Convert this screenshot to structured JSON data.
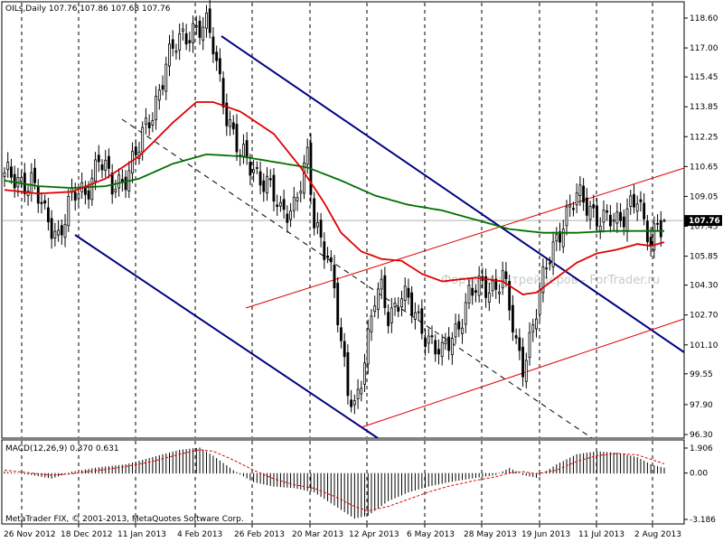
{
  "chart_header": "OILs,Daily  107.76 107.86 107.68 107.76",
  "indicator_header": "MACD(12,26,9) 0.370 0.631",
  "copyright": "MetaTrader FIX, © 2001-2013, MetaQuotes Software Corp.",
  "watermark": "Форум для трейдеров - ForTrader.ru",
  "current_price_label": "107.76",
  "colors": {
    "candle": "#000000",
    "ma_fast": "#e00000",
    "ma_slow": "#007000",
    "channel_blue": "#000080",
    "channel_red": "#e00000",
    "macd_signal": "#e00000",
    "grid_vertical": "#000000",
    "bid_line": "#b0b0b0"
  },
  "chart_data": {
    "type": "candlestick",
    "symbol": "OILs",
    "timeframe": "Daily",
    "ohlc": {
      "open": 107.76,
      "high": 107.86,
      "low": 107.68,
      "close": 107.76
    },
    "ylim": [
      96.3,
      119.0
    ],
    "price_ticks": [
      "118.60",
      "117.00",
      "115.45",
      "113.85",
      "112.25",
      "110.65",
      "109.05",
      "107.45",
      "105.85",
      "104.30",
      "102.70",
      "101.10",
      "99.55",
      "97.90",
      "96.30"
    ],
    "date_ticks": [
      "26 Nov 2012",
      "18 Dec 2012",
      "11 Jan 2013",
      "4 Feb 2013",
      "26 Feb 2013",
      "20 Mar 2013",
      "12 Apr 2013",
      "6 May 2013",
      "28 May 2013",
      "19 Jun 2013",
      "11 Jul 2013",
      "2 Aug 2013"
    ],
    "close_series": {
      "name": "close",
      "keys": [
        [
          0,
          110.0
        ],
        [
          8,
          109.9
        ],
        [
          12,
          107.9
        ],
        [
          16,
          107.1
        ],
        [
          20,
          108.9
        ],
        [
          24,
          109.3
        ],
        [
          28,
          111.2
        ],
        [
          32,
          109.4
        ],
        [
          36,
          110.3
        ],
        [
          40,
          111.6
        ],
        [
          44,
          113.6
        ],
        [
          48,
          116.2
        ],
        [
          52,
          117.3
        ],
        [
          56,
          118.2
        ],
        [
          60,
          118.0
        ],
        [
          62,
          117.0
        ],
        [
          66,
          113.6
        ],
        [
          70,
          111.1
        ],
        [
          74,
          110.6
        ],
        [
          78,
          109.8
        ],
        [
          82,
          108.0
        ],
        [
          86,
          108.8
        ],
        [
          90,
          110.9
        ],
        [
          92,
          107.5
        ],
        [
          96,
          106.2
        ],
        [
          98,
          104.2
        ],
        [
          100,
          100.8
        ],
        [
          102,
          98.5
        ],
        [
          104,
          97.9
        ],
        [
          106,
          99.6
        ],
        [
          108,
          101.4
        ],
        [
          110,
          103.4
        ],
        [
          112,
          103.9
        ],
        [
          114,
          102.8
        ],
        [
          118,
          103.8
        ],
        [
          122,
          102.6
        ],
        [
          126,
          101.6
        ],
        [
          130,
          100.4
        ],
        [
          134,
          101.9
        ],
        [
          138,
          103.8
        ],
        [
          142,
          104.1
        ],
        [
          146,
          104.4
        ],
        [
          148,
          104.9
        ],
        [
          152,
          100.9
        ],
        [
          154,
          100.1
        ],
        [
          158,
          103.0
        ],
        [
          162,
          105.8
        ],
        [
          166,
          107.9
        ],
        [
          170,
          108.9
        ],
        [
          174,
          108.5
        ],
        [
          178,
          107.8
        ],
        [
          182,
          107.5
        ],
        [
          186,
          108.9
        ],
        [
          188,
          109.0
        ],
        [
          190,
          107.2
        ],
        [
          192,
          106.4
        ],
        [
          194,
          107.8
        ],
        [
          196,
          107.76
        ]
      ],
      "ma_fast_keys": [
        [
          0,
          109.4
        ],
        [
          10,
          109.2
        ],
        [
          20,
          109.3
        ],
        [
          30,
          110.0
        ],
        [
          40,
          111.2
        ],
        [
          50,
          113.0
        ],
        [
          57,
          114.1
        ],
        [
          62,
          114.1
        ],
        [
          70,
          113.6
        ],
        [
          80,
          112.4
        ],
        [
          88,
          110.6
        ],
        [
          95,
          108.7
        ],
        [
          100,
          107.1
        ],
        [
          106,
          106.1
        ],
        [
          112,
          105.7
        ],
        [
          118,
          105.6
        ],
        [
          124,
          104.9
        ],
        [
          130,
          104.5
        ],
        [
          140,
          104.7
        ],
        [
          148,
          104.5
        ],
        [
          154,
          103.8
        ],
        [
          158,
          103.9
        ],
        [
          164,
          104.7
        ],
        [
          170,
          105.5
        ],
        [
          176,
          106.0
        ],
        [
          182,
          106.2
        ],
        [
          188,
          106.5
        ],
        [
          192,
          106.4
        ],
        [
          196,
          106.6
        ]
      ],
      "ma_slow_keys": [
        [
          0,
          109.9
        ],
        [
          10,
          109.6
        ],
        [
          20,
          109.5
        ],
        [
          30,
          109.6
        ],
        [
          40,
          110.0
        ],
        [
          50,
          110.8
        ],
        [
          60,
          111.3
        ],
        [
          70,
          111.2
        ],
        [
          80,
          110.9
        ],
        [
          90,
          110.6
        ],
        [
          100,
          109.9
        ],
        [
          110,
          109.1
        ],
        [
          120,
          108.6
        ],
        [
          130,
          108.3
        ],
        [
          140,
          107.8
        ],
        [
          150,
          107.3
        ],
        [
          160,
          107.1
        ],
        [
          170,
          107.1
        ],
        [
          180,
          107.2
        ],
        [
          190,
          107.2
        ],
        [
          196,
          107.2
        ]
      ]
    },
    "macd": {
      "name": "MACD(12,26,9)",
      "values": {
        "macd": 0.37,
        "signal": 0.631
      },
      "ticks": [
        "1.906",
        "0.00",
        "-3.186"
      ],
      "ylim": [
        -3.186,
        1.906
      ],
      "hist_keys": [
        [
          0,
          0.1
        ],
        [
          8,
          -0.1
        ],
        [
          14,
          -0.35
        ],
        [
          20,
          0.1
        ],
        [
          28,
          0.4
        ],
        [
          36,
          0.6
        ],
        [
          44,
          1.1
        ],
        [
          52,
          1.6
        ],
        [
          58,
          1.75
        ],
        [
          62,
          1.2
        ],
        [
          68,
          0.2
        ],
        [
          74,
          -0.6
        ],
        [
          80,
          -0.9
        ],
        [
          86,
          -1.0
        ],
        [
          92,
          -1.3
        ],
        [
          98,
          -2.2
        ],
        [
          104,
          -3.1
        ],
        [
          108,
          -2.9
        ],
        [
          114,
          -1.9
        ],
        [
          120,
          -1.3
        ],
        [
          126,
          -0.9
        ],
        [
          132,
          -0.6
        ],
        [
          140,
          -0.3
        ],
        [
          146,
          -0.1
        ],
        [
          150,
          0.35
        ],
        [
          154,
          -0.1
        ],
        [
          158,
          -0.3
        ],
        [
          164,
          0.6
        ],
        [
          170,
          1.3
        ],
        [
          176,
          1.5
        ],
        [
          182,
          1.4
        ],
        [
          188,
          1.1
        ],
        [
          192,
          0.6
        ],
        [
          196,
          0.37
        ]
      ],
      "signal_keys": [
        [
          0,
          0.2
        ],
        [
          8,
          0.0
        ],
        [
          14,
          -0.15
        ],
        [
          20,
          -0.05
        ],
        [
          28,
          0.2
        ],
        [
          36,
          0.45
        ],
        [
          44,
          0.8
        ],
        [
          52,
          1.3
        ],
        [
          58,
          1.6
        ],
        [
          62,
          1.5
        ],
        [
          68,
          0.9
        ],
        [
          74,
          0.2
        ],
        [
          80,
          -0.4
        ],
        [
          86,
          -0.8
        ],
        [
          92,
          -1.05
        ],
        [
          98,
          -1.6
        ],
        [
          104,
          -2.3
        ],
        [
          108,
          -2.6
        ],
        [
          114,
          -2.3
        ],
        [
          120,
          -1.8
        ],
        [
          126,
          -1.3
        ],
        [
          132,
          -0.9
        ],
        [
          140,
          -0.5
        ],
        [
          146,
          -0.25
        ],
        [
          150,
          0.0
        ],
        [
          154,
          0.1
        ],
        [
          158,
          -0.05
        ],
        [
          164,
          0.2
        ],
        [
          170,
          0.8
        ],
        [
          176,
          1.2
        ],
        [
          182,
          1.35
        ],
        [
          188,
          1.25
        ],
        [
          192,
          0.95
        ],
        [
          196,
          0.631
        ]
      ]
    }
  }
}
